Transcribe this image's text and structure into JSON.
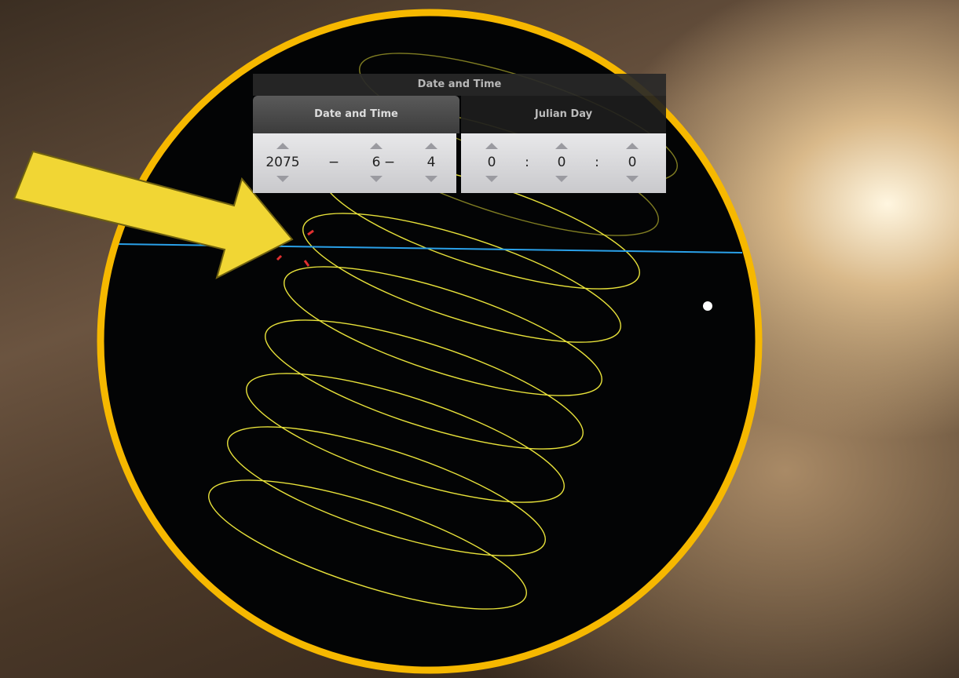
{
  "window": {
    "title": "Date and Time"
  },
  "tabs": [
    "Date and Time",
    "Julian Day"
  ],
  "date": {
    "year": 2075,
    "month": 6,
    "day": 4,
    "separators": [
      "−",
      "−"
    ]
  },
  "time": {
    "hour": 0,
    "minute": 0,
    "second": 0,
    "separators": [
      ":",
      ":"
    ]
  }
}
